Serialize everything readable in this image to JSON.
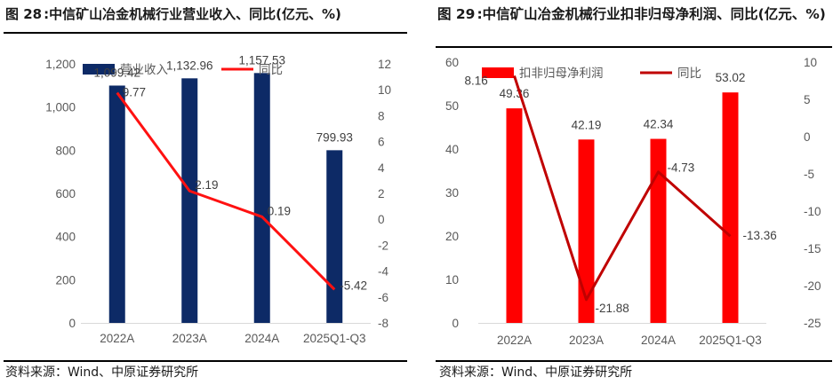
{
  "colors": {
    "bar_left": "#0d2a66",
    "bar_right": "#ff0000",
    "line_left": "#ff1111",
    "line_right": "#c00000"
  },
  "figures": [
    {
      "title_no": "图 28",
      "title_text": "中信矿山冶金机械行业营业收入、同比(亿元、%)",
      "source_text": "资料来源：Wind、中原证券研究所"
    },
    {
      "title_no": "图 29",
      "title_text": "中信矿山冶金机械行业扣非归母净利润、同比(亿元、%)",
      "source_text": "资料来源：Wind、中原证券研究所"
    }
  ],
  "chart_data": [
    {
      "type": "bar+line",
      "title": "中信矿山冶金机械行业营业收入、同比(亿元、%)",
      "categories": [
        "2022A",
        "2023A",
        "2024A",
        "2025Q1-Q3"
      ],
      "series": [
        {
          "name": "营业收入",
          "kind": "bar",
          "axis": "left",
          "values": [
            1099.42,
            1132.96,
            1157.53,
            799.93
          ],
          "labels": [
            "1,099.42",
            "1,132.96",
            "1,157.53",
            "799.93"
          ]
        },
        {
          "name": "同比",
          "kind": "line",
          "axis": "right",
          "values": [
            9.77,
            2.19,
            0.19,
            -5.42
          ],
          "labels": [
            "9.77",
            "2.19",
            "0.19",
            "-5.42"
          ]
        }
      ],
      "y_left": {
        "min": 0,
        "max": 1200,
        "ticks": [
          0,
          200,
          400,
          600,
          800,
          1000,
          1200
        ],
        "tick_labels": [
          "0",
          "200",
          "400",
          "600",
          "800",
          "1,000",
          "1,200"
        ]
      },
      "y_right": {
        "min": -8,
        "max": 12,
        "ticks": [
          -8,
          -6,
          -4,
          -2,
          0,
          2,
          4,
          6,
          8,
          10,
          12
        ],
        "tick_labels": [
          "-8",
          "-6",
          "-4",
          "-2",
          "0",
          "2",
          "4",
          "6",
          "8",
          "10",
          "12"
        ]
      },
      "legend": [
        "营业收入",
        "同比"
      ],
      "legend_position": "top-left"
    },
    {
      "type": "bar+line",
      "title": "中信矿山冶金机械行业扣非归母净利润、同比(亿元、%)",
      "categories": [
        "2022A",
        "2023A",
        "2024A",
        "2025Q1-Q3"
      ],
      "series": [
        {
          "name": "扣非归母净利润",
          "kind": "bar",
          "axis": "left",
          "values": [
            49.36,
            42.19,
            42.34,
            53.02
          ],
          "labels": [
            "49.36",
            "42.19",
            "42.34",
            "53.02"
          ]
        },
        {
          "name": "同比",
          "kind": "line",
          "axis": "right",
          "values": [
            8.16,
            -21.88,
            -4.73,
            -13.36
          ],
          "labels": [
            "8.16",
            "-21.88",
            "-4.73",
            "-13.36"
          ]
        }
      ],
      "y_left": {
        "min": 0,
        "max": 60,
        "ticks": [
          0,
          10,
          20,
          30,
          40,
          50,
          60
        ],
        "tick_labels": [
          "0",
          "10",
          "20",
          "30",
          "40",
          "50",
          "60"
        ]
      },
      "y_right": {
        "min": -25,
        "max": 10,
        "ticks": [
          -25,
          -20,
          -15,
          -10,
          -5,
          0,
          5,
          10
        ],
        "tick_labels": [
          "-25",
          "-20",
          "-15",
          "-10",
          "-5",
          "0",
          "5",
          "10"
        ]
      },
      "legend": [
        "扣非归母净利润",
        "同比"
      ],
      "legend_position": "top-left"
    }
  ]
}
